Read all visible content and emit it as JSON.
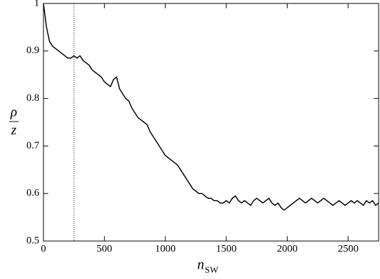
{
  "chart_data": {
    "type": "line",
    "xlabel": {
      "main": "n",
      "sub": "SW"
    },
    "ylabel": {
      "numerator": "ρ",
      "denominator": "z"
    },
    "xlim": [
      0,
      2750
    ],
    "xticks": [
      0,
      500,
      1000,
      1500,
      2000,
      2500
    ],
    "ylim": [
      0.5,
      1
    ],
    "yticks": [
      0.5,
      0.6,
      0.7,
      0.8,
      0.9,
      1
    ],
    "vline": 250,
    "series": [
      {
        "color": "#000000",
        "x": [
          0,
          25,
          50,
          75,
          100,
          125,
          150,
          175,
          200,
          225,
          250,
          275,
          300,
          325,
          350,
          375,
          400,
          425,
          450,
          475,
          500,
          525,
          550,
          575,
          600,
          625,
          650,
          675,
          700,
          725,
          750,
          775,
          800,
          825,
          850,
          875,
          900,
          925,
          950,
          975,
          1000,
          1025,
          1050,
          1075,
          1100,
          1125,
          1150,
          1175,
          1200,
          1225,
          1250,
          1275,
          1300,
          1325,
          1350,
          1375,
          1400,
          1425,
          1450,
          1475,
          1500,
          1525,
          1550,
          1575,
          1600,
          1625,
          1650,
          1675,
          1700,
          1725,
          1750,
          1775,
          1800,
          1825,
          1850,
          1875,
          1900,
          1925,
          1950,
          1975,
          2000,
          2025,
          2050,
          2075,
          2100,
          2125,
          2150,
          2175,
          2200,
          2225,
          2250,
          2275,
          2300,
          2325,
          2350,
          2375,
          2400,
          2425,
          2450,
          2475,
          2500,
          2525,
          2550,
          2575,
          2600,
          2625,
          2650,
          2675,
          2700,
          2725,
          2750
        ],
        "values": [
          1.0,
          0.95,
          0.92,
          0.91,
          0.905,
          0.9,
          0.895,
          0.89,
          0.885,
          0.885,
          0.89,
          0.885,
          0.89,
          0.88,
          0.875,
          0.87,
          0.86,
          0.855,
          0.85,
          0.845,
          0.835,
          0.83,
          0.825,
          0.84,
          0.845,
          0.82,
          0.81,
          0.8,
          0.795,
          0.78,
          0.77,
          0.76,
          0.755,
          0.75,
          0.745,
          0.73,
          0.72,
          0.71,
          0.7,
          0.69,
          0.68,
          0.675,
          0.67,
          0.665,
          0.66,
          0.65,
          0.64,
          0.63,
          0.62,
          0.61,
          0.605,
          0.6,
          0.6,
          0.595,
          0.59,
          0.59,
          0.585,
          0.585,
          0.58,
          0.58,
          0.585,
          0.58,
          0.59,
          0.595,
          0.585,
          0.58,
          0.585,
          0.58,
          0.575,
          0.585,
          0.59,
          0.585,
          0.58,
          0.585,
          0.59,
          0.58,
          0.575,
          0.58,
          0.57,
          0.565,
          0.57,
          0.575,
          0.58,
          0.585,
          0.59,
          0.585,
          0.58,
          0.585,
          0.59,
          0.585,
          0.58,
          0.585,
          0.59,
          0.585,
          0.58,
          0.575,
          0.58,
          0.585,
          0.58,
          0.575,
          0.58,
          0.585,
          0.58,
          0.585,
          0.58,
          0.575,
          0.585,
          0.58,
          0.585,
          0.575,
          0.58
        ]
      }
    ]
  }
}
